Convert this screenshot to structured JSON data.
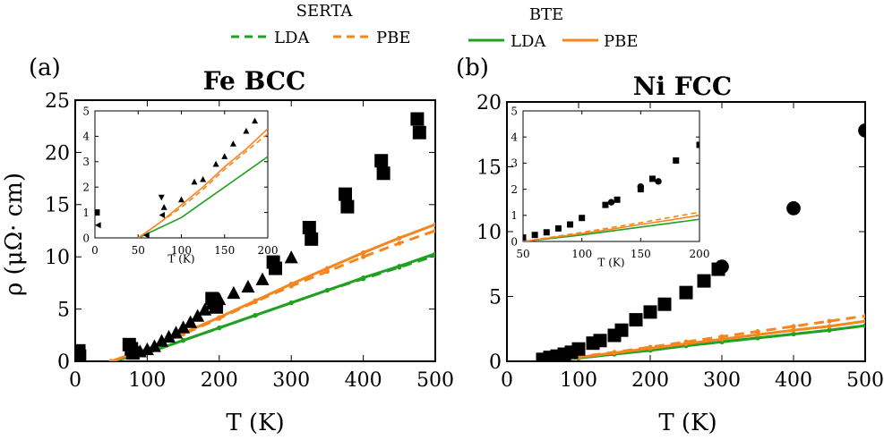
{
  "legend": {
    "serta_title": "SERTA",
    "bte_title": "BTE",
    "lda": "LDA",
    "pbe": "PBE"
  },
  "colors": {
    "lda": "#21a121",
    "pbe": "#f5861f",
    "exp": "#000000"
  },
  "chart_data": [
    {
      "type": "line",
      "panel": "(a)",
      "title": "Fe BCC",
      "xlabel": "T (K)",
      "ylabel": "ρ (μΩ· cm)",
      "xlim": [
        0,
        500
      ],
      "ylim": [
        0,
        25
      ],
      "xticks": [
        0,
        100,
        200,
        300,
        400,
        500
      ],
      "yticks": [
        0,
        5,
        10,
        15,
        20,
        25
      ],
      "series": [
        {
          "name": "BTE LDA",
          "style": "solid",
          "color": "lda",
          "x": [
            50,
            100,
            150,
            200,
            250,
            300,
            350,
            400,
            450,
            500
          ],
          "y": [
            0,
            0.8,
            2.0,
            3.2,
            4.4,
            5.6,
            6.8,
            8.0,
            9.1,
            10.3
          ]
        },
        {
          "name": "SERTA LDA",
          "style": "dashed",
          "color": "lda",
          "x": [
            50,
            100,
            150,
            200,
            250,
            300,
            350,
            400,
            450,
            500
          ],
          "y": [
            0,
            0.8,
            2.0,
            3.2,
            4.4,
            5.6,
            6.8,
            7.9,
            9.0,
            10.1
          ]
        },
        {
          "name": "BTE PBE",
          "style": "solid",
          "color": "pbe",
          "x": [
            50,
            100,
            150,
            200,
            250,
            300,
            350,
            400,
            450,
            500
          ],
          "y": [
            0,
            1.2,
            2.7,
            4.2,
            5.8,
            7.4,
            8.9,
            10.4,
            11.8,
            13.1
          ]
        },
        {
          "name": "SERTA PBE",
          "style": "dashed",
          "color": "pbe",
          "x": [
            50,
            100,
            150,
            200,
            250,
            300,
            350,
            400,
            450,
            500
          ],
          "y": [
            0,
            1.2,
            2.6,
            4.1,
            5.7,
            7.2,
            8.6,
            10.0,
            11.3,
            12.5
          ]
        }
      ],
      "experiment": [
        {
          "marker": "square",
          "x": [
            5,
            6,
            75,
            78,
            80,
            190,
            193,
            196,
            275,
            278,
            325,
            328,
            375,
            378,
            425,
            428,
            475,
            478
          ],
          "y": [
            1.0,
            0.5,
            1.6,
            1.2,
            0.8,
            6.0,
            5.6,
            5.2,
            9.5,
            8.9,
            12.8,
            11.7,
            16.0,
            14.8,
            19.2,
            18.0,
            23.2,
            21.9
          ]
        },
        {
          "marker": "triangle",
          "x": [
            90,
            100,
            110,
            120,
            130,
            140,
            150,
            160,
            170,
            180,
            190,
            200,
            220,
            240,
            260,
            300
          ],
          "y": [
            0.9,
            1.1,
            1.4,
            1.9,
            2.3,
            2.7,
            3.2,
            3.7,
            4.3,
            4.9,
            5.5,
            5.9,
            6.5,
            7.1,
            7.8,
            9.9
          ]
        }
      ],
      "inset": {
        "xlim": [
          0,
          200
        ],
        "ylim": [
          0,
          5
        ],
        "xticks": [
          0,
          50,
          100,
          150,
          200
        ],
        "yticks": [
          0,
          1,
          2,
          3,
          4,
          5
        ],
        "xlabel": "T (K)",
        "series": [
          {
            "name": "BTE LDA",
            "style": "solid",
            "color": "lda",
            "x": [
              50,
              75,
              100,
              125,
              150,
              175,
              200
            ],
            "y": [
              0,
              0.4,
              0.8,
              1.4,
              2.0,
              2.6,
              3.2
            ]
          },
          {
            "name": "BTE PBE",
            "style": "solid",
            "color": "pbe",
            "x": [
              50,
              75,
              100,
              125,
              150,
              175,
              200
            ],
            "y": [
              0,
              0.6,
              1.3,
              2.0,
              2.8,
              3.5,
              4.3
            ]
          },
          {
            "name": "SERTA PBE",
            "style": "dashed",
            "color": "pbe",
            "x": [
              50,
              75,
              100,
              125,
              150,
              175,
              200
            ],
            "y": [
              0,
              0.6,
              1.2,
              1.9,
              2.7,
              3.4,
              4.1
            ]
          }
        ],
        "experiment": [
          {
            "marker": "square",
            "x": [
              2
            ],
            "y": [
              1.0
            ]
          },
          {
            "marker": "triangle-left",
            "x": [
              4,
              60,
              78
            ],
            "y": [
              0.5,
              0.1,
              0.9
            ]
          },
          {
            "marker": "triangle-down",
            "x": [
              77
            ],
            "y": [
              1.6
            ]
          },
          {
            "marker": "triangle",
            "x": [
              80,
              100,
              115,
              125,
              140,
              150,
              160,
              175,
              185
            ],
            "y": [
              1.2,
              1.5,
              2.2,
              2.3,
              2.9,
              3.2,
              3.7,
              4.2,
              4.6
            ]
          }
        ]
      }
    },
    {
      "type": "line",
      "panel": "(b)",
      "title": "Ni FCC",
      "xlabel": "T (K)",
      "ylabel": "",
      "xlim": [
        0,
        500
      ],
      "ylim": [
        0,
        20
      ],
      "xticks": [
        0,
        100,
        200,
        300,
        400,
        500
      ],
      "yticks": [
        0,
        5,
        10,
        15,
        20
      ],
      "series": [
        {
          "name": "BTE LDA",
          "style": "solid",
          "color": "lda",
          "x": [
            50,
            100,
            150,
            200,
            250,
            300,
            350,
            400,
            450,
            500
          ],
          "y": [
            0,
            0.25,
            0.55,
            0.85,
            1.2,
            1.5,
            1.8,
            2.1,
            2.4,
            2.75
          ]
        },
        {
          "name": "SERTA LDA",
          "style": "dashed",
          "color": "lda",
          "x": [
            50,
            100,
            150,
            200,
            250,
            300,
            350,
            400,
            450,
            500
          ],
          "y": [
            0,
            0.25,
            0.55,
            0.85,
            1.2,
            1.5,
            1.8,
            2.1,
            2.4,
            2.75
          ]
        },
        {
          "name": "BTE PBE",
          "style": "solid",
          "color": "pbe",
          "x": [
            50,
            100,
            150,
            200,
            250,
            300,
            350,
            400,
            450,
            500
          ],
          "y": [
            0,
            0.3,
            0.65,
            1.0,
            1.35,
            1.7,
            2.05,
            2.4,
            2.7,
            3.1
          ]
        },
        {
          "name": "SERTA PBE",
          "style": "dashed",
          "color": "pbe",
          "x": [
            50,
            100,
            150,
            200,
            250,
            300,
            350,
            400,
            450,
            500
          ],
          "y": [
            0,
            0.35,
            0.7,
            1.1,
            1.5,
            1.9,
            2.3,
            2.7,
            3.1,
            3.5
          ]
        }
      ],
      "experiment": [
        {
          "marker": "square",
          "x": [
            50,
            60,
            70,
            80,
            90,
            100,
            120,
            130,
            150,
            160,
            180,
            200,
            220,
            250,
            275,
            295
          ],
          "y": [
            0.15,
            0.3,
            0.4,
            0.55,
            0.7,
            0.95,
            1.4,
            1.6,
            2.0,
            2.4,
            3.2,
            3.8,
            4.4,
            5.3,
            6.2,
            7.1
          ]
        },
        {
          "marker": "circle",
          "x": [
            300,
            400,
            500
          ],
          "y": [
            7.3,
            11.8,
            17.8
          ]
        }
      ],
      "inset": {
        "xlim": [
          50,
          200
        ],
        "ylim": [
          0,
          5
        ],
        "xticks": [
          50,
          100,
          150,
          200
        ],
        "yticks": [
          0,
          1,
          2,
          3,
          4,
          5
        ],
        "xlabel": "T (K)",
        "series": [
          {
            "name": "BTE LDA",
            "style": "solid",
            "color": "lda",
            "x": [
              50,
              75,
              100,
              125,
              150,
              175,
              200
            ],
            "y": [
              0,
              0.12,
              0.25,
              0.4,
              0.55,
              0.7,
              0.85
            ]
          },
          {
            "name": "BTE PBE",
            "style": "solid",
            "color": "pbe",
            "x": [
              50,
              75,
              100,
              125,
              150,
              175,
              200
            ],
            "y": [
              0,
              0.15,
              0.3,
              0.47,
              0.65,
              0.82,
              1.0
            ]
          },
          {
            "name": "SERTA PBE",
            "style": "dashed",
            "color": "pbe",
            "x": [
              50,
              75,
              100,
              125,
              150,
              175,
              200
            ],
            "y": [
              0,
              0.17,
              0.35,
              0.53,
              0.72,
              0.92,
              1.12
            ]
          }
        ],
        "experiment": [
          {
            "marker": "square",
            "x": [
              50,
              60,
              70,
              80,
              90,
              100,
              120,
              130,
              150,
              160,
              180,
              200
            ],
            "y": [
              0.15,
              0.25,
              0.35,
              0.5,
              0.65,
              0.9,
              1.4,
              1.6,
              2.0,
              2.4,
              3.1,
              3.7
            ]
          },
          {
            "marker": "circle",
            "x": [
              125,
              150,
              165
            ],
            "y": [
              1.5,
              2.1,
              2.3
            ]
          }
        ]
      }
    }
  ]
}
